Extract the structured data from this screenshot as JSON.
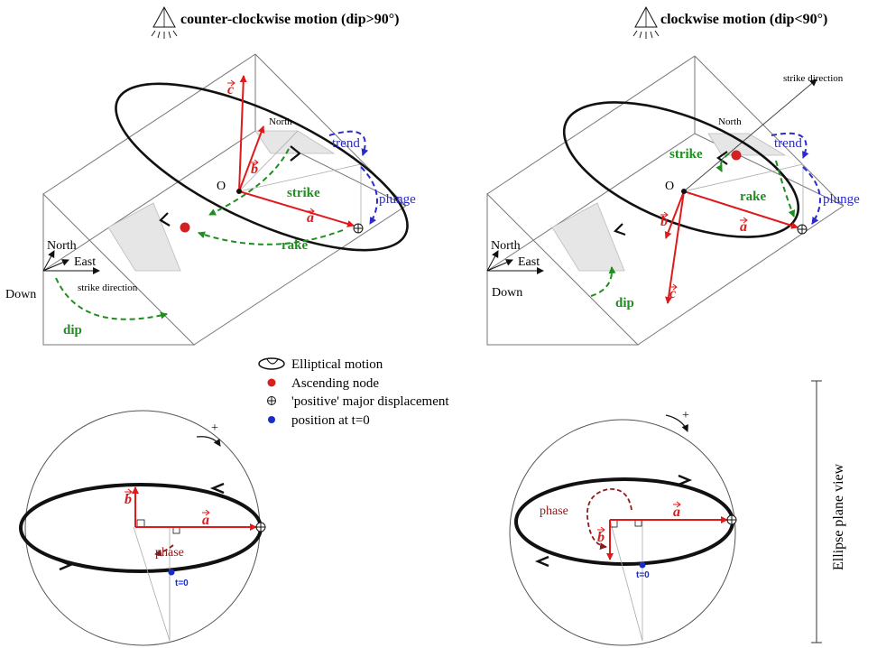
{
  "titles": {
    "left": "counter-clockwise motion (dip>90°)",
    "right": "clockwise motion (dip<90°)"
  },
  "left_panel": {
    "north": "North",
    "north_axis": "North",
    "east": "East",
    "down": "Down",
    "strike_direction": "strike direction",
    "origin": "O",
    "strike": "strike",
    "rake": "rake",
    "dip": "dip",
    "trend": "trend",
    "plunge": "plunge",
    "vec_a": "a",
    "vec_b": "b",
    "vec_c": "c"
  },
  "right_panel": {
    "north": "North",
    "north_axis": "North",
    "east": "East",
    "down": "Down",
    "strike_direction": "strike direction",
    "origin": "O",
    "strike": "strike",
    "rake": "rake",
    "dip": "dip",
    "trend": "trend",
    "plunge": "plunge",
    "vec_a": "a",
    "vec_b": "b",
    "vec_c": "c"
  },
  "legend": {
    "elliptical_motion": "Elliptical motion",
    "ascending_node": "Ascending node",
    "positive_major": "'positive' major displacement",
    "position_t0": "position at t=0"
  },
  "bottom_left": {
    "vec_a": "a",
    "vec_b": "b",
    "phase": "phase",
    "t0": "t=0",
    "plus": "+"
  },
  "bottom_right": {
    "vec_a": "a",
    "vec_b": "b",
    "phase": "phase",
    "t0": "t=0",
    "plus": "+"
  },
  "side_label": "Ellipse plane view",
  "colors": {
    "vector": "#e0191b",
    "angle_green": "#1e8f1e",
    "angle_blue": "#2a2ad0",
    "phase": "#8b1a1a",
    "ascending_node": "#d42020",
    "t0_point": "#1a2cc8"
  }
}
